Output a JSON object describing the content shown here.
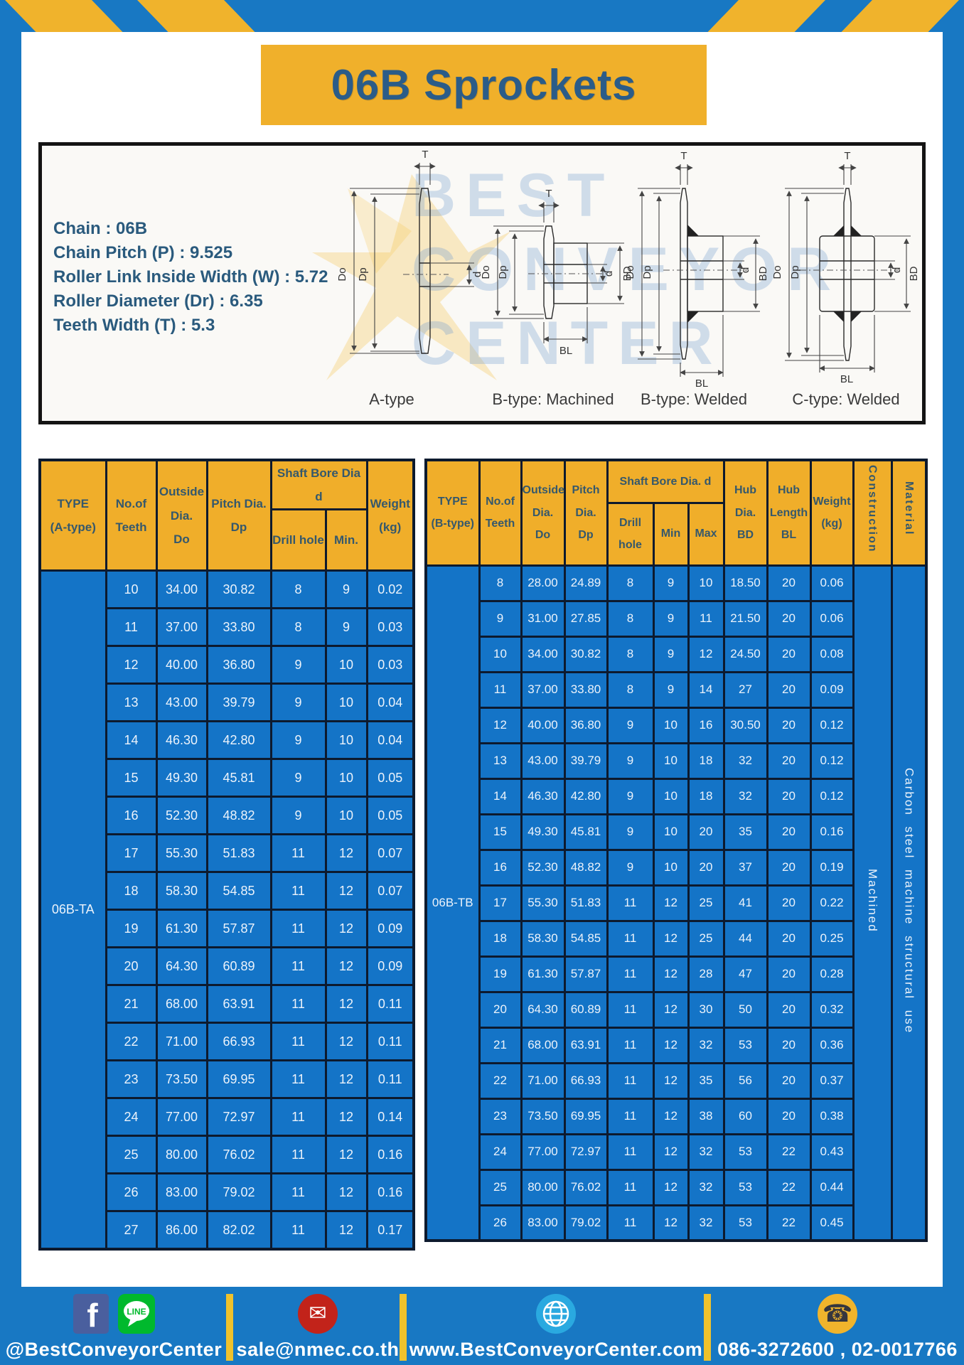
{
  "title": "06B Sprockets",
  "spec_panel": {
    "lines": [
      "Chain : 06B",
      "Chain Pitch (P) : 9.525",
      "Roller Link Inside Width (W) : 5.72",
      "Roller Diameter (Dr) : 6.35",
      "Teeth Width (T) : 5.3"
    ],
    "watermark": "BEST\nCONVEYOR\nCENTER"
  },
  "diagrams": [
    {
      "label": "A-type",
      "dims": {
        "t": "T",
        "do": "Do",
        "dp": "Dp",
        "d": "d"
      }
    },
    {
      "label": "B-type: Machined",
      "dims": {
        "t": "T",
        "do": "Do",
        "dp": "Dp",
        "d": "d",
        "bd": "BD",
        "bl": "BL"
      }
    },
    {
      "label": "B-type: Welded",
      "dims": {
        "t": "T",
        "do": "Do",
        "dp": "Dp",
        "d": "d",
        "bd": "BD",
        "bl": "BL"
      }
    },
    {
      "label": "C-type: Welded",
      "dims": {
        "t": "T",
        "do": "Do",
        "dp": "Dp",
        "d": "d",
        "bd": "BD",
        "bl": "BL"
      }
    }
  ],
  "table_a": {
    "header": {
      "type": "TYPE\n(A-type)",
      "teeth": "No.of\nTeeth",
      "outside": "Outside\nDia.\nDo",
      "pitch": "Pitch Dia.\nDp",
      "shaft_bore": "Shaft Bore Dia d",
      "drill": "Drill hole",
      "min": "Min.",
      "weight": "Weight\n(kg)"
    },
    "type_label": "06B-TA",
    "rows": [
      [
        "10",
        "34.00",
        "30.82",
        "8",
        "9",
        "0.02"
      ],
      [
        "11",
        "37.00",
        "33.80",
        "8",
        "9",
        "0.03"
      ],
      [
        "12",
        "40.00",
        "36.80",
        "9",
        "10",
        "0.03"
      ],
      [
        "13",
        "43.00",
        "39.79",
        "9",
        "10",
        "0.04"
      ],
      [
        "14",
        "46.30",
        "42.80",
        "9",
        "10",
        "0.04"
      ],
      [
        "15",
        "49.30",
        "45.81",
        "9",
        "10",
        "0.05"
      ],
      [
        "16",
        "52.30",
        "48.82",
        "9",
        "10",
        "0.05"
      ],
      [
        "17",
        "55.30",
        "51.83",
        "11",
        "12",
        "0.07"
      ],
      [
        "18",
        "58.30",
        "54.85",
        "11",
        "12",
        "0.07"
      ],
      [
        "19",
        "61.30",
        "57.87",
        "11",
        "12",
        "0.09"
      ],
      [
        "20",
        "64.30",
        "60.89",
        "11",
        "12",
        "0.09"
      ],
      [
        "21",
        "68.00",
        "63.91",
        "11",
        "12",
        "0.11"
      ],
      [
        "22",
        "71.00",
        "66.93",
        "11",
        "12",
        "0.11"
      ],
      [
        "23",
        "73.50",
        "69.95",
        "11",
        "12",
        "0.11"
      ],
      [
        "24",
        "77.00",
        "72.97",
        "11",
        "12",
        "0.14"
      ],
      [
        "25",
        "80.00",
        "76.02",
        "11",
        "12",
        "0.16"
      ],
      [
        "26",
        "83.00",
        "79.02",
        "11",
        "12",
        "0.16"
      ],
      [
        "27",
        "86.00",
        "82.02",
        "11",
        "12",
        "0.17"
      ]
    ]
  },
  "table_b": {
    "header": {
      "type": "TYPE\n(B-type)",
      "teeth": "No.of\nTeeth",
      "outside": "Outside\nDia.\nDo",
      "pitch": "Pitch\nDia.\nDp",
      "shaft_bore": "Shaft Bore Dia. d",
      "drill": "Drill hole",
      "min": "Min",
      "max": "Max",
      "hub_dia": "Hub\nDia.\nBD",
      "hub_len": "Hub\nLength\nBL",
      "weight": "Weight\n(kg)",
      "construction": "Construction",
      "material": "Material"
    },
    "type_label": "06B-TB",
    "construction_value": "Machined",
    "material_value": "Carbon steel machine structural use",
    "rows": [
      [
        "8",
        "28.00",
        "24.89",
        "8",
        "9",
        "10",
        "18.50",
        "20",
        "0.06"
      ],
      [
        "9",
        "31.00",
        "27.85",
        "8",
        "9",
        "11",
        "21.50",
        "20",
        "0.06"
      ],
      [
        "10",
        "34.00",
        "30.82",
        "8",
        "9",
        "12",
        "24.50",
        "20",
        "0.08"
      ],
      [
        "11",
        "37.00",
        "33.80",
        "8",
        "9",
        "14",
        "27",
        "20",
        "0.09"
      ],
      [
        "12",
        "40.00",
        "36.80",
        "9",
        "10",
        "16",
        "30.50",
        "20",
        "0.12"
      ],
      [
        "13",
        "43.00",
        "39.79",
        "9",
        "10",
        "18",
        "32",
        "20",
        "0.12"
      ],
      [
        "14",
        "46.30",
        "42.80",
        "9",
        "10",
        "18",
        "32",
        "20",
        "0.12"
      ],
      [
        "15",
        "49.30",
        "45.81",
        "9",
        "10",
        "20",
        "35",
        "20",
        "0.16"
      ],
      [
        "16",
        "52.30",
        "48.82",
        "9",
        "10",
        "20",
        "37",
        "20",
        "0.19"
      ],
      [
        "17",
        "55.30",
        "51.83",
        "11",
        "12",
        "25",
        "41",
        "20",
        "0.22"
      ],
      [
        "18",
        "58.30",
        "54.85",
        "11",
        "12",
        "25",
        "44",
        "20",
        "0.25"
      ],
      [
        "19",
        "61.30",
        "57.87",
        "11",
        "12",
        "28",
        "47",
        "20",
        "0.28"
      ],
      [
        "20",
        "64.30",
        "60.89",
        "11",
        "12",
        "30",
        "50",
        "20",
        "0.32"
      ],
      [
        "21",
        "68.00",
        "63.91",
        "11",
        "12",
        "32",
        "53",
        "20",
        "0.36"
      ],
      [
        "22",
        "71.00",
        "66.93",
        "11",
        "12",
        "35",
        "56",
        "20",
        "0.37"
      ],
      [
        "23",
        "73.50",
        "69.95",
        "11",
        "12",
        "38",
        "60",
        "20",
        "0.38"
      ],
      [
        "24",
        "77.00",
        "72.97",
        "11",
        "12",
        "32",
        "53",
        "22",
        "0.43"
      ],
      [
        "25",
        "80.00",
        "76.02",
        "11",
        "12",
        "32",
        "53",
        "22",
        "0.44"
      ],
      [
        "26",
        "83.00",
        "79.02",
        "11",
        "12",
        "32",
        "53",
        "22",
        "0.45"
      ]
    ]
  },
  "footer": {
    "social_handle": "@BestConveyorCenter",
    "email": "sale@nmec.co.th",
    "website": "www.BestConveyorCenter.com",
    "phone": "086-3272600 , 02-0017766",
    "facebook_letter": "f",
    "line_badge": "LINE",
    "mail_glyph": "✉",
    "phone_glyph": "☎"
  },
  "colors": {
    "frame_blue": "#1878c3",
    "table_blue": "#1474c7",
    "accent_yellow": "#f0b02b",
    "header_text": "#35586c",
    "title_text": "#2b5c88",
    "border_dark": "#0d1a2e",
    "footer_text": "#ffffff"
  }
}
